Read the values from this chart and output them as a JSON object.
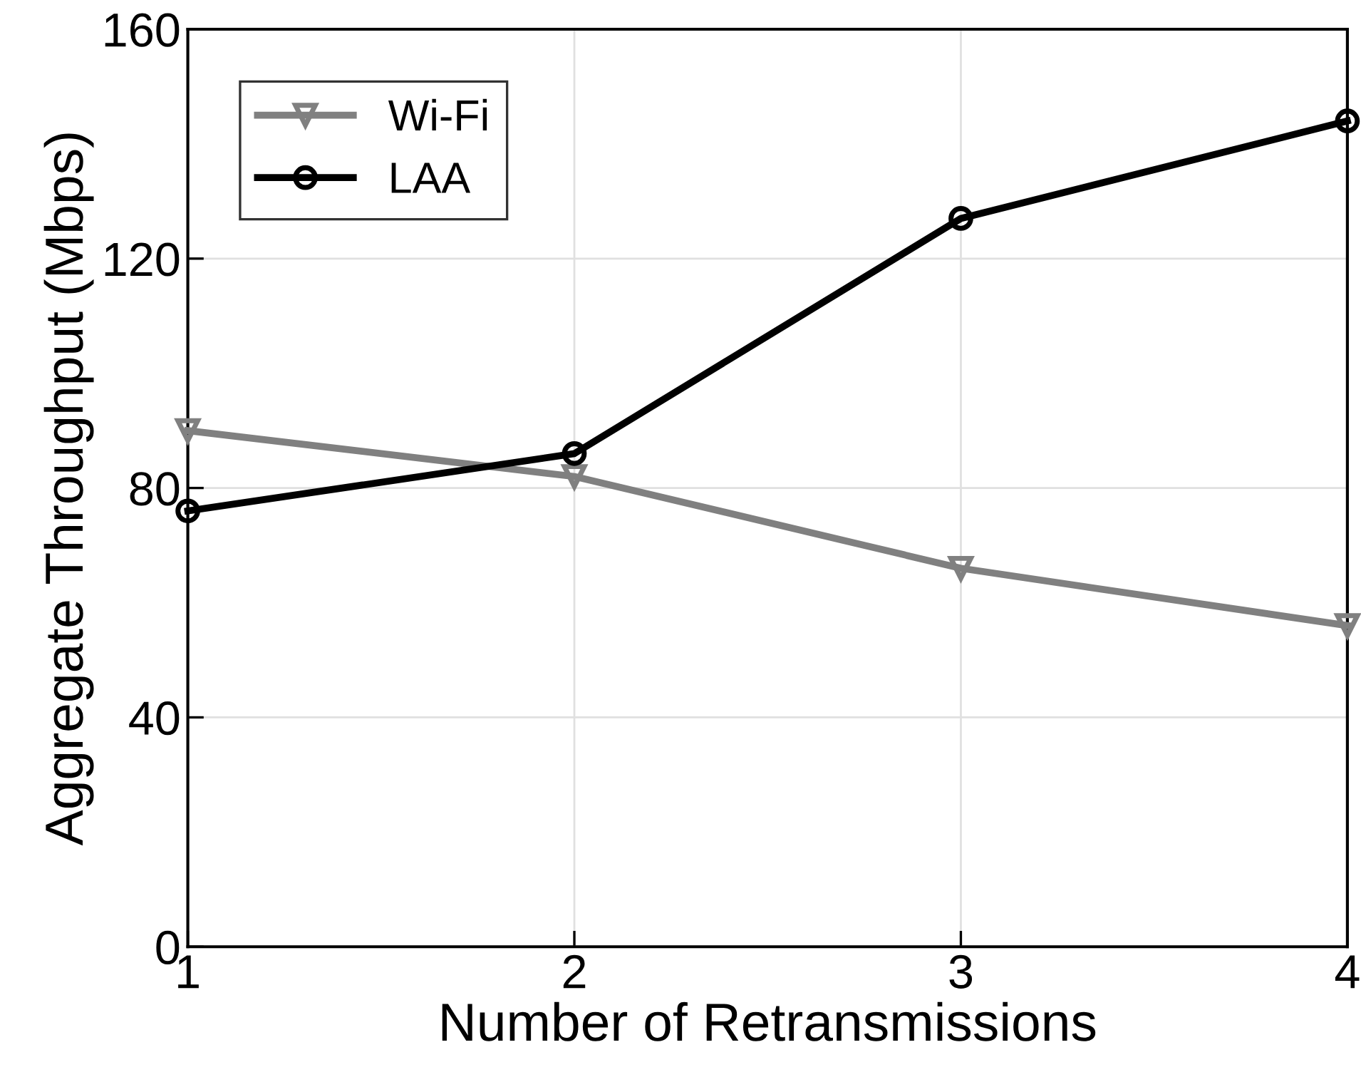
{
  "chart_data": {
    "type": "line",
    "xlabel": "Number of Retransmissions",
    "ylabel": "Aggregate Throughput (Mbps)",
    "x": [
      1,
      2,
      3,
      4
    ],
    "xlim": [
      1,
      4
    ],
    "xticks": [
      1,
      2,
      3,
      4
    ],
    "ylim": [
      0,
      160
    ],
    "yticks": [
      0,
      40,
      80,
      120,
      160
    ],
    "grid": true,
    "legend": "top left",
    "line_style": "solid",
    "series": [
      {
        "name": "Wi-Fi",
        "color": "#808080",
        "marker": "triangle",
        "values": [
          90,
          82,
          66,
          56
        ]
      },
      {
        "name": "LAA",
        "color": "#000000",
        "marker": "circle",
        "values": [
          76,
          86,
          127,
          144
        ]
      }
    ]
  }
}
